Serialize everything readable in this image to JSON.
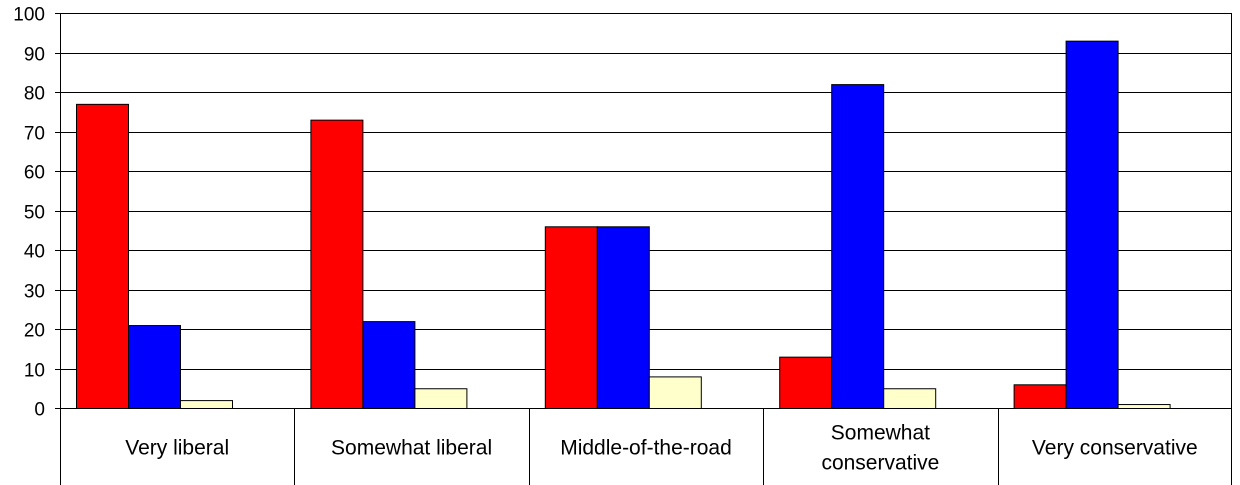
{
  "chart_data": {
    "type": "bar",
    "title": "",
    "xlabel": "",
    "ylabel": "",
    "ylim": [
      0,
      100
    ],
    "yticks": [
      0,
      10,
      20,
      30,
      40,
      50,
      60,
      70,
      80,
      90,
      100
    ],
    "grid": "horizontal",
    "legend": "none",
    "categories": [
      "Very liberal",
      "Somewhat liberal",
      "Middle-of-the-road",
      "Somewhat conservative",
      "Very conservative"
    ],
    "category_lines": [
      [
        "Very liberal"
      ],
      [
        "Somewhat liberal"
      ],
      [
        "Middle-of-the-road"
      ],
      [
        "Somewhat",
        "conservative"
      ],
      [
        "Very conservative"
      ]
    ],
    "series": [
      {
        "color": "#ff0000",
        "values": [
          77,
          73,
          46,
          13,
          6
        ]
      },
      {
        "color": "#0000ff",
        "values": [
          21,
          22,
          46,
          82,
          93
        ]
      },
      {
        "color": "#ffffcc",
        "values": [
          2,
          5,
          8,
          5,
          1
        ]
      }
    ]
  }
}
